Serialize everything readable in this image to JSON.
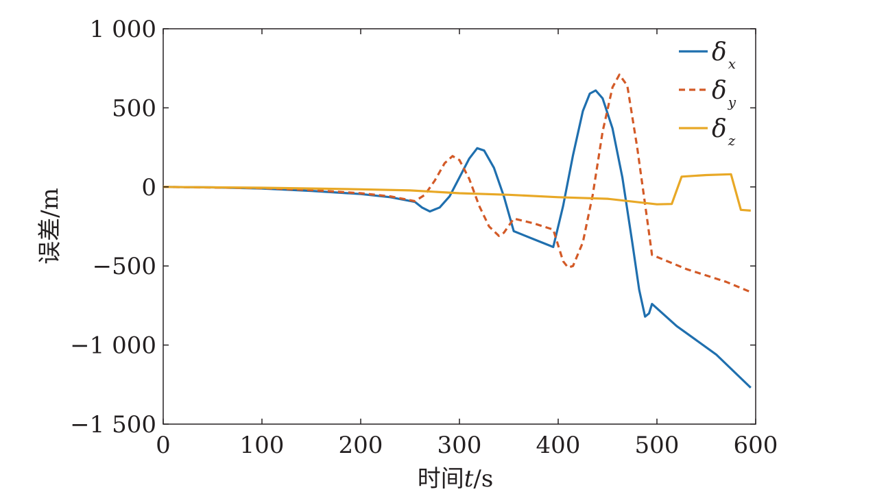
{
  "chart_data": {
    "type": "line",
    "title": "",
    "xlabel": "时间t/s",
    "xlabel_parts": {
      "prefix": "时间",
      "var": "t",
      "suffix": "/s"
    },
    "ylabel": "误差/m",
    "xlim": [
      0,
      600
    ],
    "ylim": [
      -1500,
      1000
    ],
    "xticks": [
      0,
      100,
      200,
      300,
      400,
      500,
      600
    ],
    "xtick_labels": [
      "0",
      "100",
      "200",
      "300",
      "400",
      "500",
      "600"
    ],
    "yticks": [
      1000,
      500,
      0,
      -500,
      -1000,
      -1500
    ],
    "ytick_labels": [
      "1 000",
      "500",
      "0",
      "−500",
      "−1 000",
      "−1 500"
    ],
    "grid": false,
    "legend_position": "top-right",
    "series": [
      {
        "name": "δx",
        "legend_symbol": "δ",
        "legend_subscript": "x",
        "color": "#1f6fae",
        "dash": "solid",
        "x": [
          0,
          50,
          100,
          150,
          200,
          230,
          255,
          262,
          270,
          280,
          290,
          300,
          310,
          318,
          325,
          335,
          345,
          355,
          375,
          395,
          405,
          415,
          425,
          432,
          438,
          445,
          455,
          465,
          475,
          482,
          488,
          492,
          495,
          520,
          560,
          595
        ],
        "y": [
          0,
          -3,
          -10,
          -25,
          -45,
          -65,
          -95,
          -130,
          -155,
          -130,
          -60,
          60,
          180,
          245,
          230,
          120,
          -60,
          -280,
          -330,
          -380,
          -120,
          200,
          480,
          590,
          610,
          560,
          370,
          60,
          -350,
          -650,
          -820,
          -800,
          -740,
          -880,
          -1060,
          -1270
        ]
      },
      {
        "name": "δy",
        "legend_symbol": "δ",
        "legend_subscript": "y",
        "color": "#d35a27",
        "dash": "dashed",
        "x": [
          0,
          100,
          150,
          200,
          230,
          255,
          265,
          275,
          285,
          293,
          300,
          310,
          320,
          330,
          340,
          345,
          355,
          375,
          395,
          400,
          405,
          410,
          415,
          425,
          435,
          445,
          455,
          462,
          470,
          480,
          490,
          495,
          530,
          570,
          595
        ],
        "y": [
          0,
          -8,
          -20,
          -40,
          -60,
          -90,
          -50,
          40,
          150,
          195,
          170,
          50,
          -120,
          -250,
          -310,
          -290,
          -200,
          -230,
          -270,
          -370,
          -470,
          -510,
          -500,
          -350,
          -50,
          350,
          630,
          710,
          640,
          250,
          -200,
          -430,
          -520,
          -600,
          -665
        ]
      },
      {
        "name": "δz",
        "legend_symbol": "δ",
        "legend_subscript": "z",
        "color": "#e8a826",
        "dash": "solid",
        "x": [
          0,
          100,
          200,
          250,
          300,
          350,
          400,
          450,
          500,
          515,
          525,
          550,
          575,
          585,
          595
        ],
        "y": [
          0,
          -5,
          -15,
          -22,
          -40,
          -50,
          -65,
          -75,
          -110,
          -108,
          65,
          75,
          80,
          -145,
          -150
        ]
      }
    ]
  }
}
